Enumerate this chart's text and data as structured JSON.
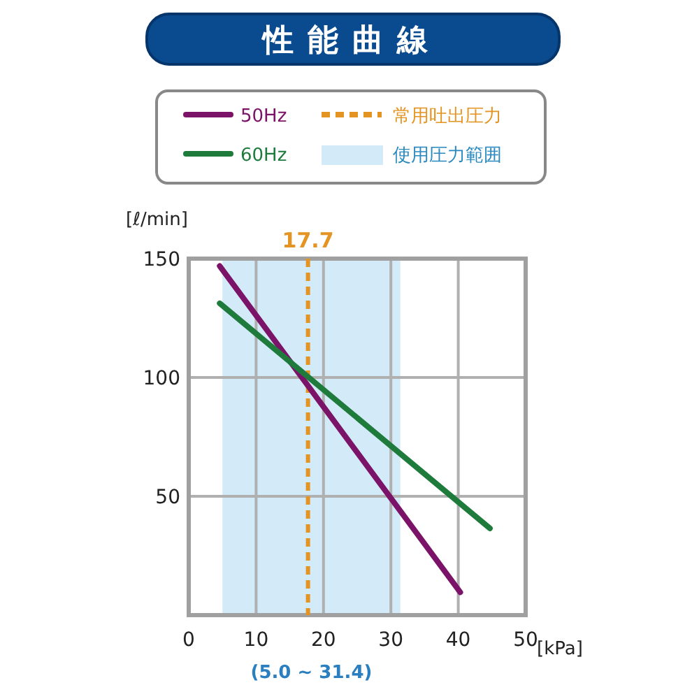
{
  "chart_data": {
    "type": "line",
    "title": "性能曲線",
    "xlabel": "[kPa]",
    "ylabel": "[ℓ/min]",
    "series": [
      {
        "name": "50Hz",
        "color": "#7b1468",
        "x": [
          4.6,
          40.3
        ],
        "values": [
          146.9,
          9.6
        ]
      },
      {
        "name": "60Hz",
        "color": "#1e7b3c",
        "x": [
          4.6,
          44.7
        ],
        "values": [
          131.2,
          36.5
        ]
      }
    ],
    "xlim": [
      0,
      50
    ],
    "ylim": [
      0,
      150
    ],
    "xticks": [
      0,
      10,
      20,
      30,
      40,
      50
    ],
    "yticks": [
      50,
      100,
      150
    ],
    "ref_lines": [
      {
        "axis": "x",
        "value": 17.7,
        "label": "17.7",
        "color": "#e39422",
        "line_style": "dashed"
      }
    ],
    "bands": [
      {
        "axis": "x",
        "from": 5.0,
        "to": 31.4,
        "label": "(5.0 ~ 31.4)",
        "color": "#d3eaf8"
      }
    ],
    "annotations": [
      "常用吐出圧力",
      "使用圧力範囲"
    ],
    "grid": true,
    "legend": "top",
    "line_style": "solid"
  }
}
